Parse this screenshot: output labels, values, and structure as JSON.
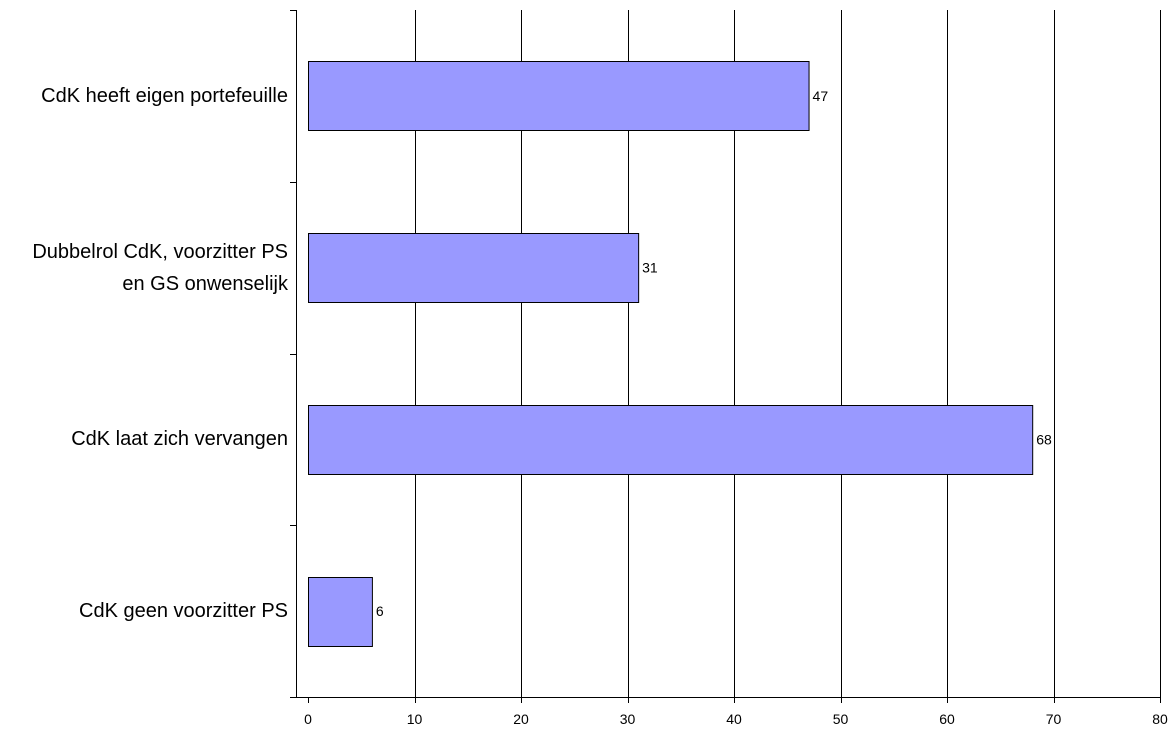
{
  "chart_data": {
    "type": "bar",
    "orientation": "horizontal",
    "categories": [
      "CdK heeft eigen portefeuille",
      "Dubbelrol CdK, voorzitter PS\nen GS onwenselijk",
      "CdK laat zich vervangen",
      "CdK geen voorzitter PS"
    ],
    "values": [
      47,
      31,
      68,
      6
    ],
    "data_labels": [
      "47",
      "31",
      "68",
      "6"
    ],
    "xlim": [
      0,
      80
    ],
    "x_ticks": [
      0,
      10,
      20,
      30,
      40,
      50,
      60,
      70,
      80
    ],
    "x_tick_labels": [
      "0",
      "10",
      "20",
      "30",
      "40",
      "50",
      "60",
      "70",
      "80"
    ],
    "grid": "vertical",
    "legend": "none",
    "colors": {
      "bar_fill": "#9999ff",
      "bar_stroke": "#000000",
      "grid": "#000000",
      "background": "#ffffff"
    }
  }
}
